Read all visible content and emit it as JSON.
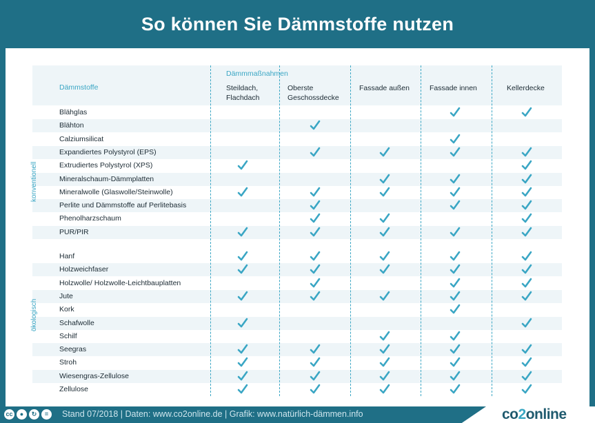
{
  "title": "So können Sie Dämmstoffe nutzen",
  "header": {
    "daemmstoffe_label": "Dämmstoffe",
    "group_label": "Dämmmaßnahmen",
    "columns": [
      {
        "line1": "Steildach,",
        "line2": "Flachdach"
      },
      {
        "line1": "Oberste",
        "line2": "Geschossdecke"
      },
      {
        "line1": "Fassade außen",
        "line2": ""
      },
      {
        "line1": "Fassade innen",
        "line2": ""
      },
      {
        "line1": "Kellerdecke",
        "line2": ""
      }
    ]
  },
  "groups": {
    "konventionell": "konventionell",
    "oekologisch": "ökologisch"
  },
  "check_color": "#3aa6c4",
  "conventional_rows": [
    {
      "name": "Blähglas",
      "checks": [
        0,
        0,
        0,
        1,
        1
      ]
    },
    {
      "name": "Blähton",
      "checks": [
        0,
        1,
        0,
        0,
        0
      ]
    },
    {
      "name": "Calziumsilicat",
      "checks": [
        0,
        0,
        0,
        1,
        0
      ]
    },
    {
      "name": "Expandiertes Polystyrol (EPS)",
      "checks": [
        0,
        1,
        1,
        1,
        1
      ]
    },
    {
      "name": "Extrudiertes Polystyrol (XPS)",
      "checks": [
        1,
        0,
        0,
        0,
        1
      ]
    },
    {
      "name": "Mineralschaum-Dämmplatten",
      "checks": [
        0,
        0,
        1,
        1,
        1
      ]
    },
    {
      "name": "Mineralwolle (Glaswolle/Steinwolle)",
      "checks": [
        1,
        1,
        1,
        1,
        1
      ]
    },
    {
      "name": "Perlite und Dämmstoffe auf Perlitebasis",
      "checks": [
        0,
        1,
        0,
        1,
        1
      ]
    },
    {
      "name": "Phenolharzschaum",
      "checks": [
        0,
        1,
        1,
        0,
        1
      ]
    },
    {
      "name": "PUR/PIR",
      "checks": [
        1,
        1,
        1,
        1,
        1
      ]
    }
  ],
  "ecological_rows": [
    {
      "name": "Hanf",
      "checks": [
        1,
        1,
        1,
        1,
        1
      ]
    },
    {
      "name": "Holzweichfaser",
      "checks": [
        1,
        1,
        1,
        1,
        1
      ]
    },
    {
      "name": "Holzwolle/ Holzwolle-Leichtbauplatten",
      "checks": [
        0,
        1,
        0,
        1,
        1
      ]
    },
    {
      "name": "Jute",
      "checks": [
        1,
        1,
        1,
        1,
        1
      ]
    },
    {
      "name": "Kork",
      "checks": [
        0,
        0,
        0,
        1,
        0
      ]
    },
    {
      "name": "Schafwolle",
      "checks": [
        1,
        0,
        0,
        0,
        1
      ]
    },
    {
      "name": "Schilf",
      "checks": [
        0,
        0,
        1,
        1,
        0
      ]
    },
    {
      "name": "Seegras",
      "checks": [
        1,
        1,
        1,
        1,
        1
      ]
    },
    {
      "name": "Stroh",
      "checks": [
        1,
        1,
        1,
        1,
        1
      ]
    },
    {
      "name": "Wiesengras-Zellulose",
      "checks": [
        1,
        1,
        1,
        1,
        1
      ]
    },
    {
      "name": "Zellulose",
      "checks": [
        1,
        1,
        1,
        1,
        1
      ]
    }
  ],
  "footer": {
    "cc_icons": [
      "cc-icon",
      "by-icon",
      "sa-icon",
      "cc-extra-icon"
    ],
    "text": "Stand 07/2018  |  Daten: www.co2online.de  |  Grafik: www.natürlich-dämmen.info",
    "brand_a": "co",
    "brand_b": "2",
    "brand_c": "online"
  }
}
